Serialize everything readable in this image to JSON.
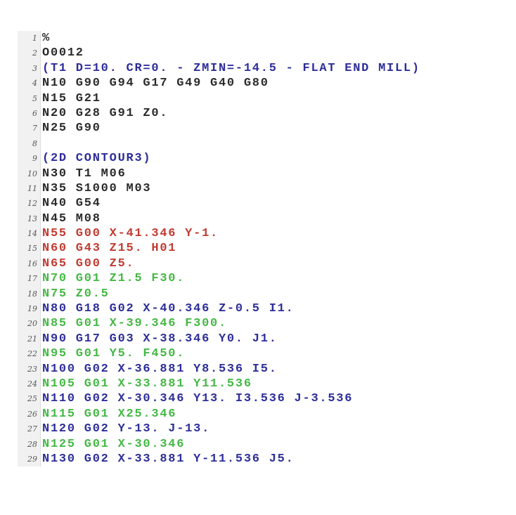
{
  "colors": {
    "black": "#2a2a2a",
    "blue": "#2e2e9a",
    "red": "#c23b32",
    "green": "#45b845"
  },
  "lines": [
    {
      "n": "1",
      "text": "%",
      "color": "black"
    },
    {
      "n": "2",
      "text": "O0012",
      "color": "black"
    },
    {
      "n": "3",
      "text": "(T1 D=10. CR=0. - ZMIN=-14.5 - FLAT END MILL)",
      "color": "blue"
    },
    {
      "n": "4",
      "text": "N10 G90 G94 G17 G49 G40 G80",
      "color": "black"
    },
    {
      "n": "5",
      "text": "N15 G21",
      "color": "black"
    },
    {
      "n": "6",
      "text": "N20 G28 G91 Z0.",
      "color": "black"
    },
    {
      "n": "7",
      "text": "N25 G90",
      "color": "black"
    },
    {
      "n": "8",
      "text": "",
      "color": "black"
    },
    {
      "n": "9",
      "text": "(2D CONTOUR3)",
      "color": "blue"
    },
    {
      "n": "10",
      "text": "N30 T1 M06",
      "color": "black"
    },
    {
      "n": "11",
      "text": "N35 S1000 M03",
      "color": "black"
    },
    {
      "n": "12",
      "text": "N40 G54",
      "color": "black"
    },
    {
      "n": "13",
      "text": "N45 M08",
      "color": "black"
    },
    {
      "n": "14",
      "text": "N55 G00 X-41.346 Y-1.",
      "color": "red"
    },
    {
      "n": "15",
      "text": "N60 G43 Z15. H01",
      "color": "red"
    },
    {
      "n": "16",
      "text": "N65 G00 Z5.",
      "color": "red"
    },
    {
      "n": "17",
      "text": "N70 G01 Z1.5 F30.",
      "color": "green"
    },
    {
      "n": "18",
      "text": "N75 Z0.5",
      "color": "green"
    },
    {
      "n": "19",
      "text": "N80 G18 G02 X-40.346 Z-0.5 I1.",
      "color": "blue"
    },
    {
      "n": "20",
      "text": "N85 G01 X-39.346 F300.",
      "color": "green"
    },
    {
      "n": "21",
      "text": "N90 G17 G03 X-38.346 Y0. J1.",
      "color": "blue"
    },
    {
      "n": "22",
      "text": "N95 G01 Y5. F450.",
      "color": "green"
    },
    {
      "n": "23",
      "text": "N100 G02 X-36.881 Y8.536 I5.",
      "color": "blue"
    },
    {
      "n": "24",
      "text": "N105 G01 X-33.881 Y11.536",
      "color": "green"
    },
    {
      "n": "25",
      "text": "N110 G02 X-30.346 Y13. I3.536 J-3.536",
      "color": "blue"
    },
    {
      "n": "26",
      "text": "N115 G01 X25.346",
      "color": "green"
    },
    {
      "n": "27",
      "text": "N120 G02 Y-13. J-13.",
      "color": "blue"
    },
    {
      "n": "28",
      "text": "N125 G01 X-30.346",
      "color": "green"
    },
    {
      "n": "29",
      "text": "N130 G02 X-33.881 Y-11.536 J5.",
      "color": "blue"
    }
  ]
}
